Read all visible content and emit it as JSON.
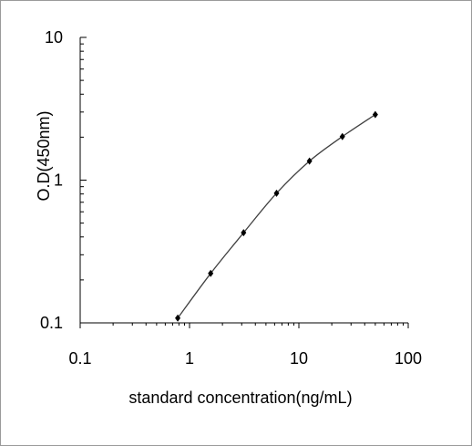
{
  "chart_data": {
    "type": "line",
    "title": "",
    "xlabel": "standard concentration(ng/mL)",
    "ylabel": "O.D(450nm)",
    "x_scale": "log",
    "y_scale": "log",
    "xlim": [
      0.1,
      100
    ],
    "ylim": [
      0.1,
      10
    ],
    "x_tick_labels": [
      "0.1",
      "1",
      "10",
      "100"
    ],
    "y_tick_labels": [
      "0.1",
      "1",
      "10"
    ],
    "grid": false,
    "legend": "none",
    "series": [
      {
        "x": [
          0.78,
          1.56,
          3.12,
          6.25,
          12.5,
          25,
          50
        ],
        "y": [
          0.108,
          0.222,
          0.428,
          0.81,
          1.36,
          2.02,
          2.88
        ],
        "marker": "diamond",
        "color": "#000000",
        "line_color": "#404040"
      }
    ]
  }
}
